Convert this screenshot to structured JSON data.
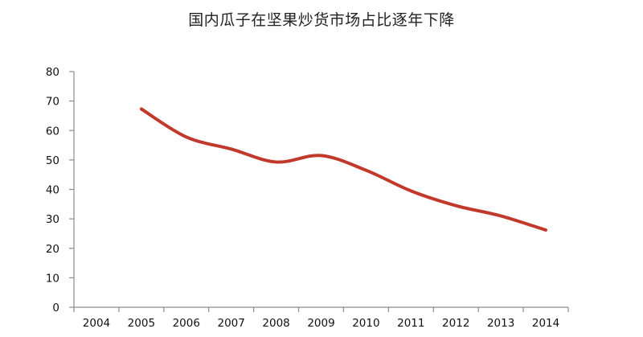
{
  "chart_data": {
    "type": "line",
    "title": "国内瓜子在坚果炒货市场占比逐年下降",
    "xlabel": "",
    "ylabel": "",
    "categories": [
      "2004",
      "2005",
      "2006",
      "2007",
      "2008",
      "2009",
      "2010",
      "2011",
      "2012",
      "2013",
      "2014"
    ],
    "yticks": [
      "0",
      "10",
      "20",
      "30",
      "40",
      "50",
      "60",
      "70",
      "80"
    ],
    "ylim": [
      0,
      80
    ],
    "grid": false,
    "legend": "none",
    "series": [
      {
        "color": "#c0392b",
        "x": [
          "2005",
          "2006",
          "2007",
          "2008",
          "2009",
          "2010",
          "2011",
          "2012",
          "2013",
          "2014"
        ],
        "values": [
          67.3,
          57.8,
          53.7,
          49.3,
          51.5,
          46.5,
          39.5,
          34.5,
          31.0,
          26.2
        ]
      }
    ]
  }
}
